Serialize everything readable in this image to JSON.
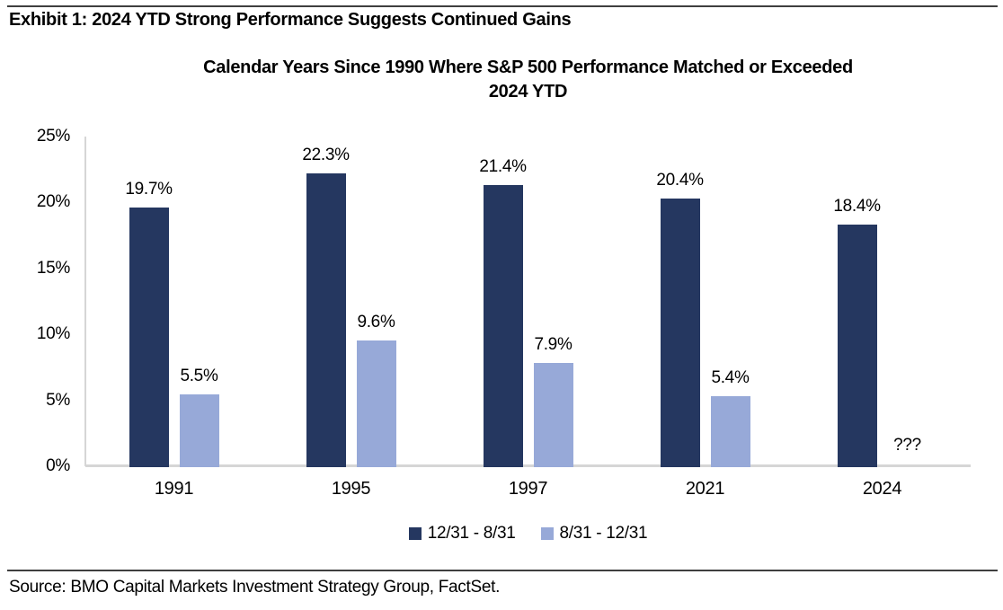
{
  "exhibit_title": "Exhibit 1: 2024 YTD Strong Performance Suggests Continued Gains",
  "source": "Source: BMO Capital Markets Investment Strategy Group, FactSet.",
  "colors": {
    "series_dark": "#253760",
    "series_light": "#97A9D8",
    "axis_line": "#d6d6d6",
    "rule": "#3f3f3f",
    "text": "#000000"
  },
  "chart_data": {
    "type": "bar",
    "title": "Calendar Years Since 1990 Where S&P 500 Performance Matched or Exceeded 2024 YTD",
    "title_lines": [
      "Calendar Years Since 1990 Where S&P 500 Performance Matched or Exceeded",
      "2024 YTD"
    ],
    "categories": [
      "1991",
      "1995",
      "1997",
      "2021",
      "2024"
    ],
    "series": [
      {
        "name": "12/31 - 8/31",
        "color": "#253760",
        "values": [
          19.7,
          22.3,
          21.4,
          20.4,
          18.4
        ],
        "labels": [
          "19.7%",
          "22.3%",
          "21.4%",
          "20.4%",
          "18.4%"
        ]
      },
      {
        "name": "8/31 - 12/31",
        "color": "#97A9D8",
        "values": [
          5.5,
          9.6,
          7.9,
          5.4,
          null
        ],
        "labels": [
          "5.5%",
          "9.6%",
          "7.9%",
          "5.4%",
          "???"
        ]
      }
    ],
    "xlabel": "",
    "ylabel": "",
    "ylim": [
      0,
      25
    ],
    "ytick_step": 5,
    "ytick_suffix": "%",
    "grid": false,
    "legend_position": "bottom"
  }
}
